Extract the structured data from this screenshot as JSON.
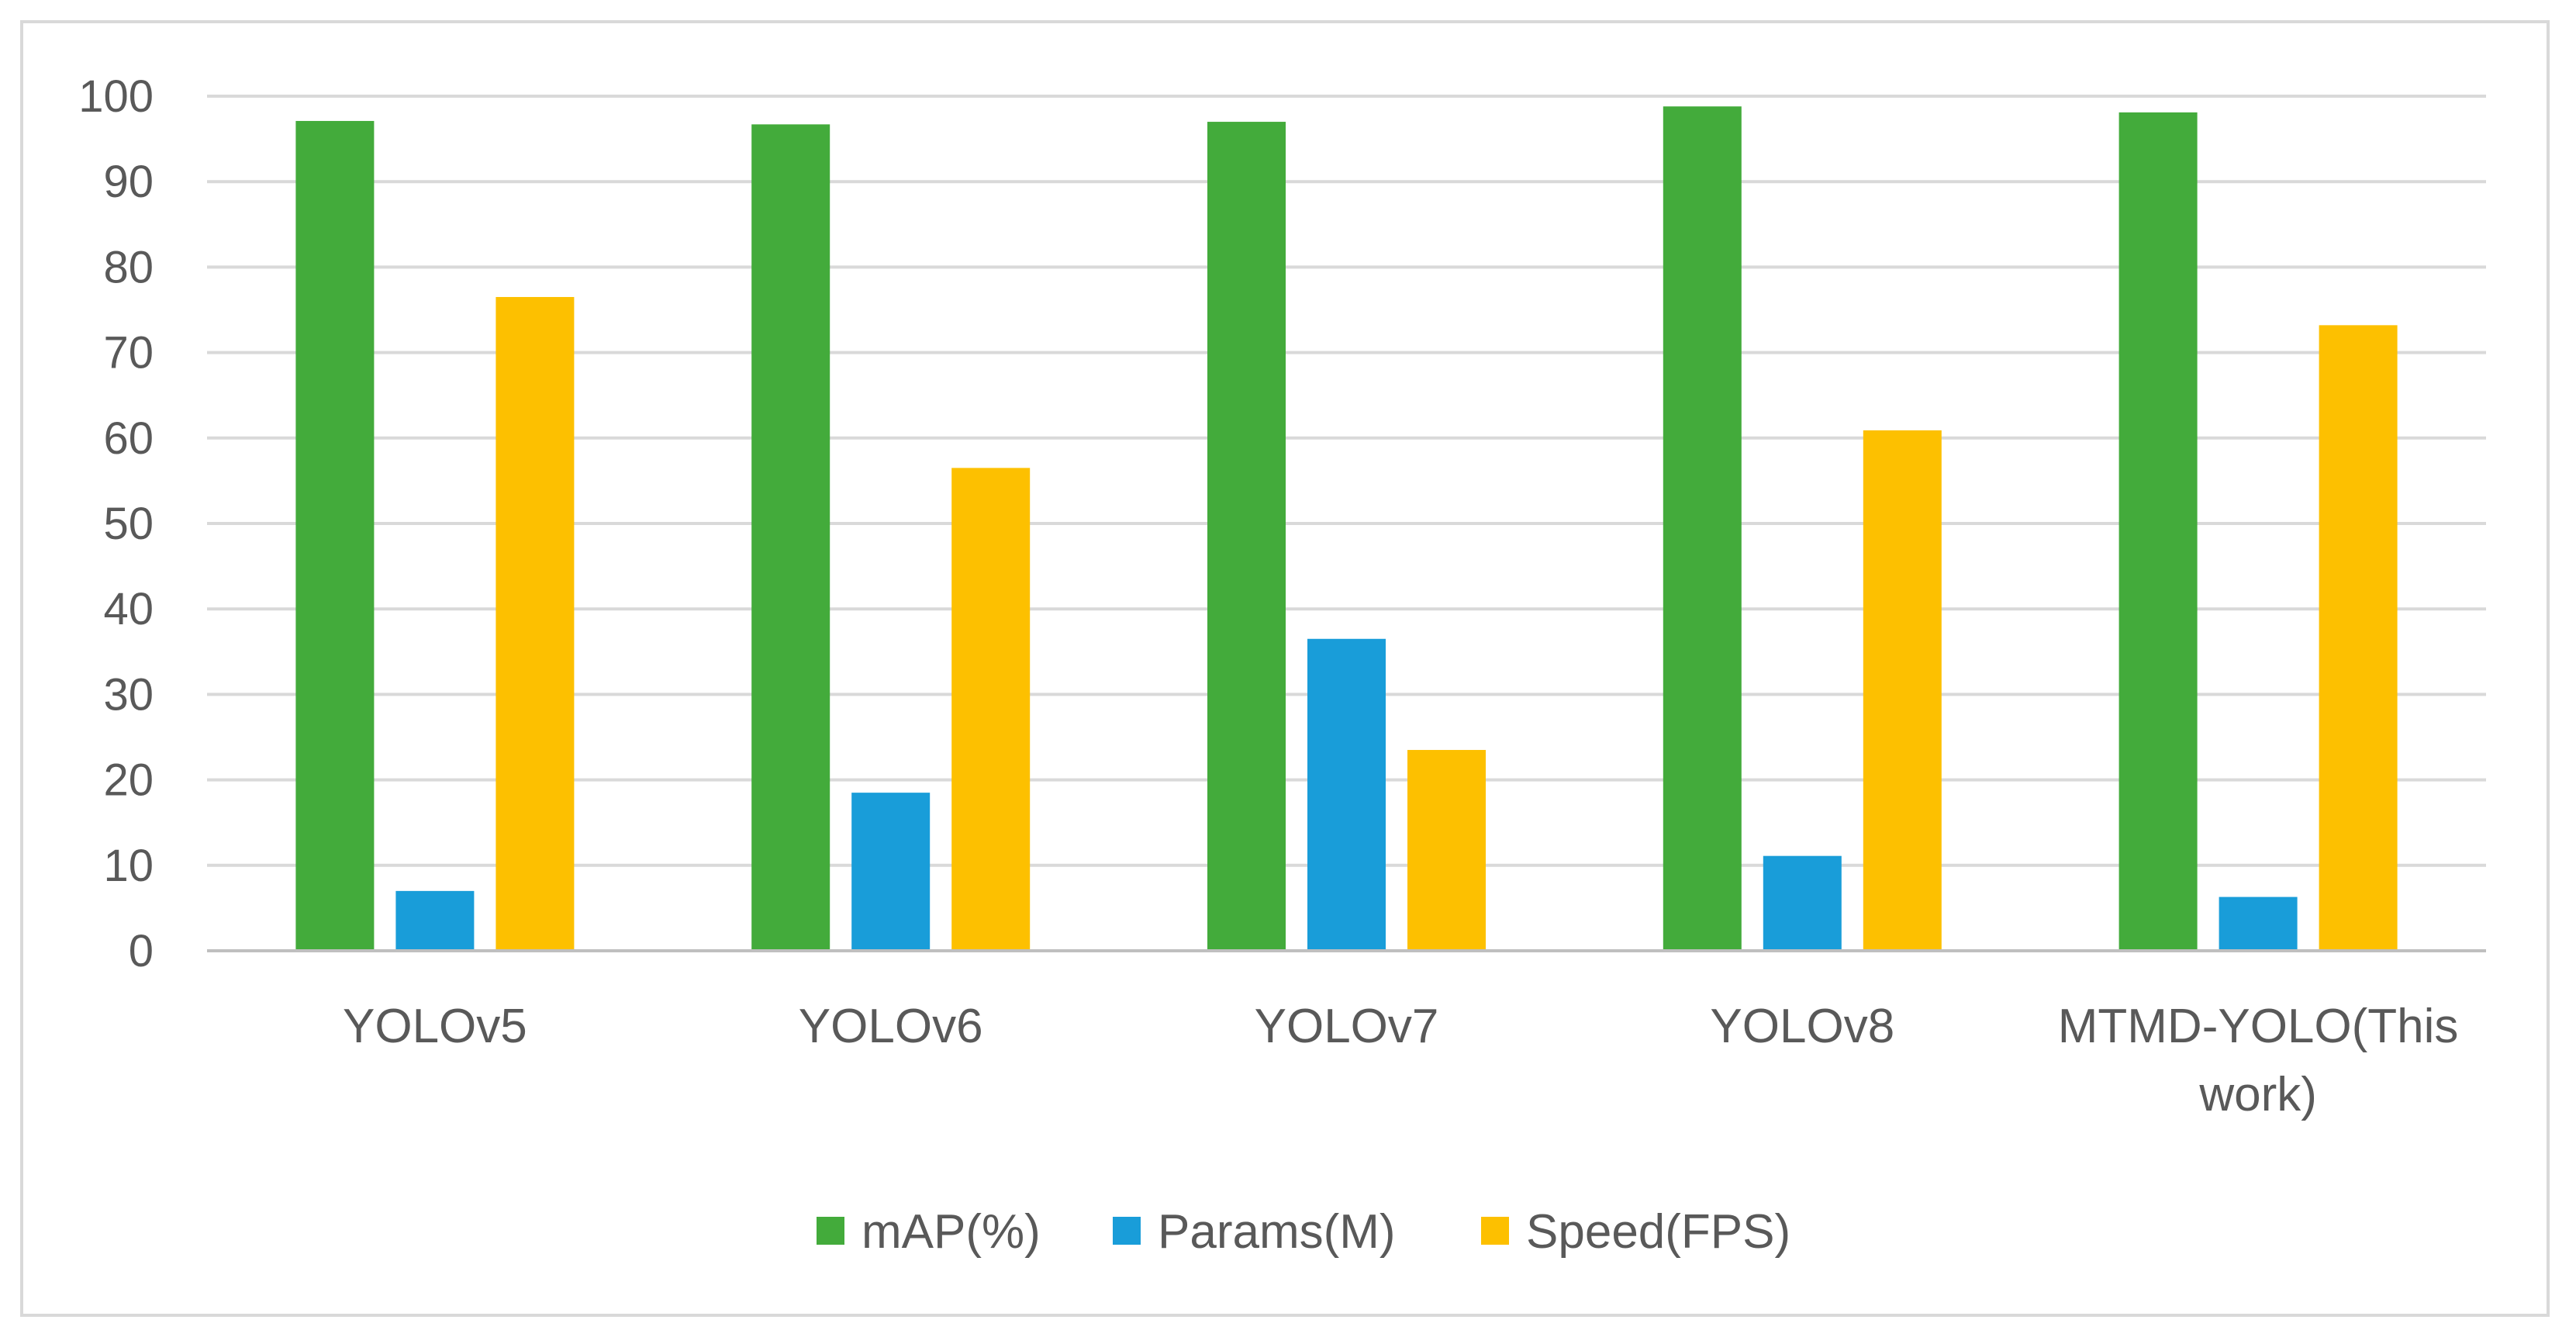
{
  "chart_data": {
    "type": "bar",
    "title": "",
    "xlabel": "",
    "ylabel": "",
    "ylim": [
      0,
      100
    ],
    "yticks": [
      0,
      10,
      20,
      30,
      40,
      50,
      60,
      70,
      80,
      90,
      100
    ],
    "grid": true,
    "legend_position": "bottom",
    "categories": [
      "YOLOv5",
      "YOLOv6",
      "YOLOv7",
      "YOLOv8",
      "MTMD-YOLO(This work)"
    ],
    "series": [
      {
        "name": "mAP(%)",
        "color": "#43ab3b",
        "values": [
          97.1,
          96.7,
          97.0,
          98.8,
          98.1
        ]
      },
      {
        "name": "Params(M)",
        "color": "#199dd9",
        "values": [
          7.0,
          18.5,
          36.5,
          11.1,
          6.3
        ]
      },
      {
        "name": "Speed(FPS)",
        "color": "#fdc000",
        "values": [
          76.5,
          56.5,
          23.5,
          60.9,
          73.2
        ]
      }
    ]
  }
}
